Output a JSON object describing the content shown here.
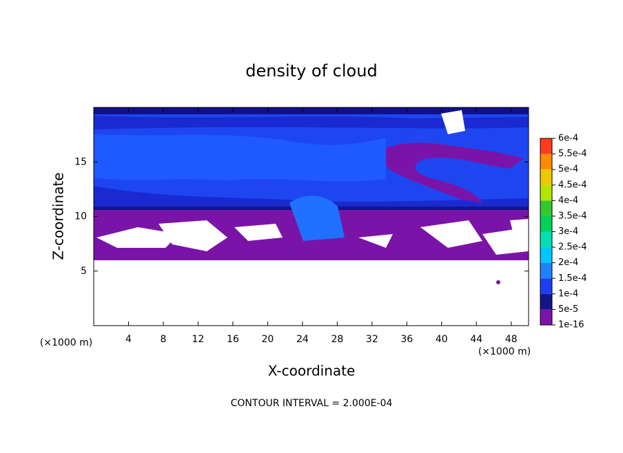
{
  "chart_data": {
    "type": "contour",
    "title": "density of cloud",
    "x_label": "X-coordinate",
    "y_label": "Z-coordinate",
    "x_unit": "(×1000 m)",
    "y_unit": "(×1000 m)",
    "annotation": "CONTOUR INTERVAL = 2.000E-04",
    "xlim": [
      0,
      50
    ],
    "xticks": [
      4,
      8,
      12,
      16,
      20,
      24,
      28,
      32,
      36,
      40,
      44,
      48
    ],
    "ylim": [
      0,
      20
    ],
    "yticks": [
      5,
      10,
      15
    ],
    "colorbar": {
      "ticks": [
        {
          "value": 1e-16,
          "label": "1e-16"
        },
        {
          "value": 5e-05,
          "label": "5e-5"
        },
        {
          "value": 0.0001,
          "label": "1e-4"
        },
        {
          "value": 0.00015,
          "label": "1.5e-4"
        },
        {
          "value": 0.0002,
          "label": "2e-4"
        },
        {
          "value": 0.00025,
          "label": "2.5e-4"
        },
        {
          "value": 0.0003,
          "label": "3e-4"
        },
        {
          "value": 0.00035,
          "label": "3.5e-4"
        },
        {
          "value": 0.0004,
          "label": "4e-4"
        },
        {
          "value": 0.00045,
          "label": "4.5e-4"
        },
        {
          "value": 0.0005,
          "label": "5e-4"
        },
        {
          "value": 0.00055,
          "label": "5.5e-4"
        },
        {
          "value": 0.0006,
          "label": "6e-4"
        }
      ],
      "colors": [
        "#7a14a8",
        "#14148c",
        "#1e3cf0",
        "#1e82ff",
        "#00c8ff",
        "#00e0b4",
        "#00d25a",
        "#32c832",
        "#b4e600",
        "#f0c800",
        "#ff8c00",
        "#ff3c1e"
      ]
    }
  }
}
